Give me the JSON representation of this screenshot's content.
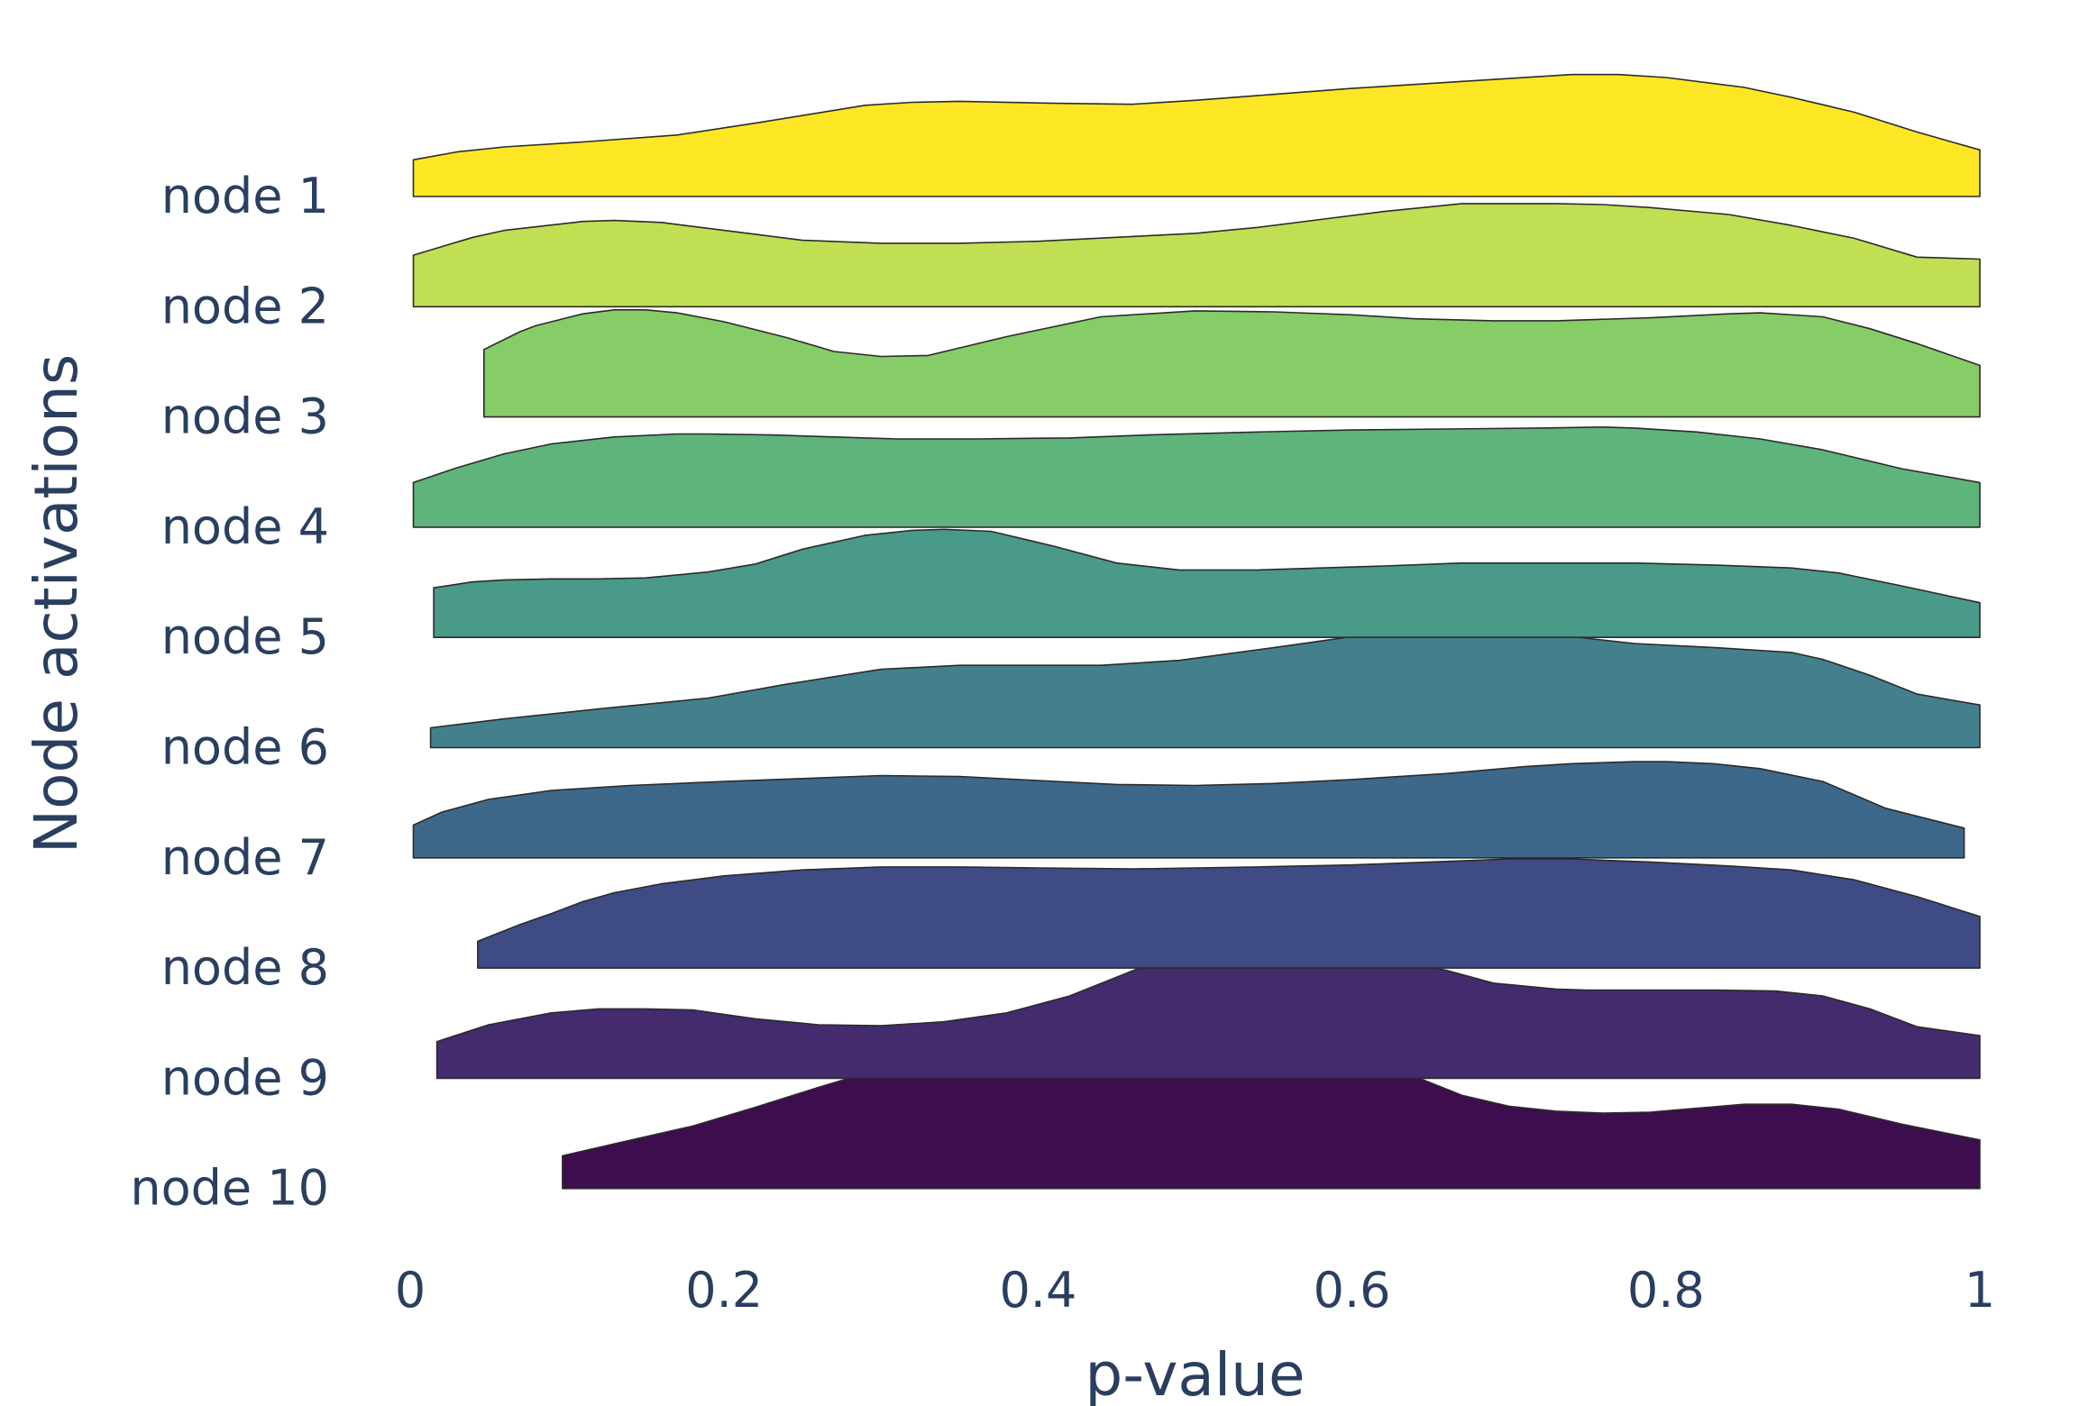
{
  "chart_data": {
    "type": "area",
    "subtype": "ridgeline",
    "title": "",
    "xlabel": "p-value",
    "ylabel": "Node activations",
    "xlim": [
      0,
      1
    ],
    "x_ticks": [
      0,
      0.2,
      0.4,
      0.6,
      0.8,
      1
    ],
    "x_tick_labels": [
      "0",
      "0.2",
      "0.4",
      "0.6",
      "0.8",
      "1"
    ],
    "grid": false,
    "legend": "none",
    "y_categories": [
      "node 1",
      "node 2",
      "node 3",
      "node 4",
      "node 5",
      "node 6",
      "node 7",
      "node 8",
      "node 9",
      "node 10"
    ],
    "series": [
      {
        "category": "node 1",
        "color": "#fde725",
        "x": [
          0.002,
          0.03,
          0.06,
          0.11,
          0.17,
          0.22,
          0.29,
          0.32,
          0.35,
          0.41,
          0.46,
          0.5,
          0.55,
          0.6,
          0.65,
          0.69,
          0.74,
          0.77,
          0.8,
          0.85,
          0.88,
          0.92,
          0.96,
          1.0
        ],
        "density": [
          0.74,
          0.9,
          1.0,
          1.1,
          1.24,
          1.48,
          1.84,
          1.9,
          1.92,
          1.88,
          1.86,
          1.94,
          2.06,
          2.18,
          2.28,
          2.36,
          2.46,
          2.46,
          2.4,
          2.2,
          2.0,
          1.7,
          1.3,
          0.94
        ]
      },
      {
        "category": "node 2",
        "color": "#c0df52",
        "x": [
          0.002,
          0.04,
          0.06,
          0.11,
          0.13,
          0.16,
          0.2,
          0.25,
          0.3,
          0.35,
          0.4,
          0.45,
          0.5,
          0.54,
          0.58,
          0.62,
          0.67,
          0.71,
          0.73,
          0.76,
          0.79,
          0.84,
          0.88,
          0.92,
          0.96,
          1.0
        ],
        "density": [
          1.04,
          1.4,
          1.54,
          1.72,
          1.74,
          1.7,
          1.54,
          1.34,
          1.28,
          1.28,
          1.32,
          1.4,
          1.48,
          1.6,
          1.76,
          1.92,
          2.08,
          2.08,
          2.08,
          2.06,
          2.0,
          1.86,
          1.64,
          1.38,
          1.0,
          0.96
        ]
      },
      {
        "category": "node 3",
        "color": "#86cc67",
        "x": [
          0.047,
          0.07,
          0.08,
          0.11,
          0.13,
          0.15,
          0.17,
          0.2,
          0.24,
          0.27,
          0.3,
          0.33,
          0.38,
          0.44,
          0.5,
          0.55,
          0.6,
          0.64,
          0.69,
          0.73,
          0.79,
          0.84,
          0.86,
          0.9,
          0.93,
          0.96,
          1.0
        ],
        "density": [
          1.36,
          1.72,
          1.84,
          2.08,
          2.16,
          2.16,
          2.1,
          1.92,
          1.6,
          1.32,
          1.22,
          1.24,
          1.62,
          2.02,
          2.14,
          2.12,
          2.06,
          1.98,
          1.94,
          1.94,
          2.0,
          2.08,
          2.1,
          2.02,
          1.78,
          1.48,
          1.04
        ]
      },
      {
        "category": "node 4",
        "color": "#5eb47a",
        "x": [
          0.002,
          0.03,
          0.06,
          0.09,
          0.13,
          0.17,
          0.19,
          0.23,
          0.27,
          0.31,
          0.36,
          0.42,
          0.47,
          0.54,
          0.6,
          0.66,
          0.72,
          0.76,
          0.78,
          0.82,
          0.86,
          0.9,
          0.95,
          1.0
        ],
        "density": [
          0.9,
          1.2,
          1.48,
          1.68,
          1.82,
          1.88,
          1.88,
          1.86,
          1.82,
          1.78,
          1.78,
          1.8,
          1.86,
          1.92,
          1.96,
          1.98,
          2.0,
          2.02,
          2.0,
          1.92,
          1.78,
          1.56,
          1.18,
          0.9
        ]
      },
      {
        "category": "node 5",
        "color": "#4a9a89",
        "x": [
          0.015,
          0.04,
          0.06,
          0.09,
          0.12,
          0.15,
          0.19,
          0.22,
          0.25,
          0.29,
          0.32,
          0.34,
          0.37,
          0.41,
          0.45,
          0.49,
          0.54,
          0.58,
          0.62,
          0.67,
          0.72,
          0.78,
          0.83,
          0.88,
          0.91,
          0.95,
          1.0
        ],
        "density": [
          1.0,
          1.12,
          1.16,
          1.18,
          1.18,
          1.2,
          1.32,
          1.48,
          1.78,
          2.06,
          2.16,
          2.18,
          2.14,
          1.84,
          1.5,
          1.36,
          1.36,
          1.4,
          1.44,
          1.5,
          1.5,
          1.5,
          1.46,
          1.4,
          1.3,
          1.04,
          0.7
        ]
      },
      {
        "category": "node 6",
        "color": "#44808b",
        "x": [
          0.013,
          0.06,
          0.12,
          0.19,
          0.24,
          0.3,
          0.35,
          0.4,
          0.44,
          0.49,
          0.56,
          0.6,
          0.66,
          0.71,
          0.74,
          0.78,
          0.83,
          0.88,
          0.9,
          0.93,
          0.96,
          1.0
        ],
        "density": [
          0.4,
          0.58,
          0.78,
          1.0,
          1.28,
          1.58,
          1.66,
          1.66,
          1.66,
          1.76,
          2.06,
          2.24,
          2.36,
          2.34,
          2.24,
          2.1,
          2.02,
          1.92,
          1.78,
          1.46,
          1.08,
          0.86
        ]
      },
      {
        "category": "node 7",
        "color": "#3d688a",
        "x": [
          0.002,
          0.02,
          0.05,
          0.09,
          0.14,
          0.2,
          0.25,
          0.3,
          0.35,
          0.4,
          0.45,
          0.5,
          0.55,
          0.6,
          0.66,
          0.71,
          0.74,
          0.78,
          0.8,
          0.83,
          0.86,
          0.9,
          0.94,
          0.99
        ],
        "density": [
          0.66,
          0.92,
          1.18,
          1.36,
          1.46,
          1.54,
          1.6,
          1.66,
          1.64,
          1.56,
          1.48,
          1.46,
          1.5,
          1.58,
          1.7,
          1.84,
          1.9,
          1.94,
          1.94,
          1.9,
          1.8,
          1.54,
          1.0,
          0.6
        ]
      },
      {
        "category": "node 8",
        "color": "#3e4b84",
        "x": [
          0.043,
          0.07,
          0.09,
          0.11,
          0.13,
          0.16,
          0.2,
          0.25,
          0.3,
          0.35,
          0.4,
          0.46,
          0.5,
          0.54,
          0.6,
          0.65,
          0.7,
          0.74,
          0.79,
          0.84,
          0.88,
          0.92,
          0.96,
          1.0
        ],
        "density": [
          0.54,
          0.88,
          1.1,
          1.34,
          1.52,
          1.7,
          1.86,
          1.98,
          2.04,
          2.04,
          2.02,
          2.0,
          2.02,
          2.04,
          2.08,
          2.14,
          2.2,
          2.2,
          2.14,
          2.06,
          1.98,
          1.78,
          1.44,
          1.04
        ]
      },
      {
        "category": "node 9",
        "color": "#432b6e",
        "x": [
          0.017,
          0.05,
          0.09,
          0.12,
          0.15,
          0.18,
          0.22,
          0.26,
          0.3,
          0.34,
          0.38,
          0.42,
          0.45,
          0.48,
          0.51,
          0.55,
          0.58,
          0.62,
          0.66,
          0.69,
          0.73,
          0.75,
          0.79,
          0.83,
          0.87,
          0.9,
          0.93,
          0.96,
          1.0
        ],
        "density": [
          0.74,
          1.08,
          1.32,
          1.4,
          1.4,
          1.38,
          1.2,
          1.08,
          1.06,
          1.14,
          1.32,
          1.66,
          2.04,
          2.42,
          2.62,
          2.62,
          2.58,
          2.4,
          2.18,
          1.92,
          1.8,
          1.78,
          1.78,
          1.78,
          1.76,
          1.66,
          1.4,
          1.04,
          0.86
        ]
      },
      {
        "category": "node 10",
        "color": "#3d0d4e",
        "x": [
          0.097,
          0.13,
          0.18,
          0.22,
          0.26,
          0.3,
          0.34,
          0.38,
          0.43,
          0.48,
          0.52,
          0.56,
          0.6,
          0.64,
          0.67,
          0.7,
          0.73,
          0.76,
          0.79,
          0.82,
          0.85,
          0.88,
          0.91,
          0.95,
          1.0
        ],
        "density": [
          0.66,
          0.9,
          1.26,
          1.64,
          2.04,
          2.42,
          2.78,
          2.98,
          3.08,
          3.14,
          3.14,
          2.98,
          2.64,
          2.26,
          1.88,
          1.66,
          1.56,
          1.52,
          1.54,
          1.62,
          1.7,
          1.7,
          1.6,
          1.3,
          0.98
        ]
      }
    ]
  }
}
